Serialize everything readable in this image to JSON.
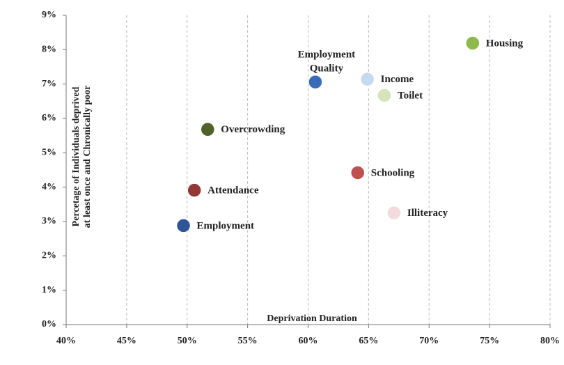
{
  "chart_data": {
    "type": "scatter",
    "x_label": "Deprivation Duration",
    "y_label": [
      "Percetage of Individuals deprived",
      "at least once and Chronically poor"
    ],
    "series": [
      {
        "name": "Housing",
        "color": "#8db84a",
        "x": [
          73.6
        ],
        "values": [
          8.19
        ]
      },
      {
        "name": "Income",
        "color": "#c5d9f1",
        "x": [
          64.9
        ],
        "values": [
          7.14
        ]
      },
      {
        "name": "Employment Quality",
        "color": "#3a6db5",
        "x": [
          60.6
        ],
        "values": [
          7.06
        ]
      },
      {
        "name": "Toilet",
        "color": "#d6e4bc",
        "x": [
          66.3
        ],
        "values": [
          6.67
        ]
      },
      {
        "name": "Overcrowding",
        "color": "#4f6228",
        "x": [
          51.7
        ],
        "values": [
          5.68
        ]
      },
      {
        "name": "Schooling",
        "color": "#c0504d",
        "x": [
          64.1
        ],
        "values": [
          4.42
        ]
      },
      {
        "name": "Attendance",
        "color": "#953735",
        "x": [
          50.6
        ],
        "values": [
          3.91
        ]
      },
      {
        "name": "Illiteracy",
        "color": "#f2dcdb",
        "x": [
          67.1
        ],
        "values": [
          3.25
        ]
      },
      {
        "name": "Employment",
        "color": "#2f5597",
        "x": [
          49.7
        ],
        "values": [
          2.88
        ]
      }
    ],
    "xlim": [
      40,
      80
    ],
    "xticks": [
      {
        "value": 40,
        "label": "40%"
      },
      {
        "value": 45,
        "label": "45%"
      },
      {
        "value": 50,
        "label": "50%"
      },
      {
        "value": 55,
        "label": "55%"
      },
      {
        "value": 60,
        "label": "60%"
      },
      {
        "value": 65,
        "label": "65%"
      },
      {
        "value": 70,
        "label": "70%"
      },
      {
        "value": 75,
        "label": "75%"
      },
      {
        "value": 80,
        "label": "80%"
      }
    ],
    "ylim": [
      0,
      9
    ],
    "yticks": [
      {
        "value": 0,
        "label": "0%"
      },
      {
        "value": 1,
        "label": "1%"
      },
      {
        "value": 2,
        "label": "2%"
      },
      {
        "value": 3,
        "label": "3%"
      },
      {
        "value": 4,
        "label": "4%"
      },
      {
        "value": 5,
        "label": "5%"
      },
      {
        "value": 6,
        "label": "6%"
      },
      {
        "value": 7,
        "label": "7%"
      },
      {
        "value": 8,
        "label": "8%"
      },
      {
        "value": 9,
        "label": "9%"
      }
    ],
    "grid": "x"
  }
}
